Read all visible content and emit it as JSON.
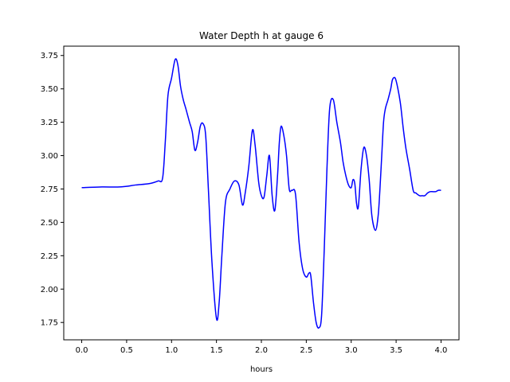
{
  "chart_data": {
    "type": "line",
    "title": "Water Depth h at gauge 6",
    "xlabel": "hours",
    "ylabel": "",
    "xlim": [
      -0.2,
      4.2
    ],
    "ylim": [
      1.62,
      3.82
    ],
    "xticks": [
      0.0,
      0.5,
      1.0,
      1.5,
      2.0,
      2.5,
      3.0,
      3.5,
      4.0
    ],
    "xtick_labels": [
      "0.0",
      "0.5",
      "1.0",
      "1.5",
      "2.0",
      "2.5",
      "3.0",
      "3.5",
      "4.0"
    ],
    "yticks": [
      1.75,
      2.0,
      2.25,
      2.5,
      2.75,
      3.0,
      3.25,
      3.5,
      3.75
    ],
    "ytick_labels": [
      "1.75",
      "2.00",
      "2.25",
      "2.50",
      "2.75",
      "3.00",
      "3.25",
      "3.50",
      "3.75"
    ],
    "grid": false,
    "legend": "none",
    "series": [
      {
        "color": "#0000ff",
        "x": [
          0.0,
          0.2,
          0.4,
          0.5,
          0.6,
          0.75,
          0.85,
          0.9,
          0.93,
          0.96,
          1.0,
          1.04,
          1.07,
          1.1,
          1.13,
          1.16,
          1.2,
          1.23,
          1.26,
          1.29,
          1.32,
          1.35,
          1.38,
          1.41,
          1.45,
          1.5,
          1.53,
          1.56,
          1.6,
          1.65,
          1.7,
          1.75,
          1.79,
          1.82,
          1.86,
          1.9,
          1.93,
          1.97,
          2.0,
          2.03,
          2.06,
          2.09,
          2.12,
          2.15,
          2.18,
          2.2,
          2.22,
          2.25,
          2.28,
          2.31,
          2.34,
          2.38,
          2.42,
          2.46,
          2.5,
          2.53,
          2.55,
          2.58,
          2.61,
          2.64,
          2.67,
          2.7,
          2.73,
          2.76,
          2.8,
          2.84,
          2.88,
          2.91,
          2.94,
          2.97,
          3.0,
          3.02,
          3.04,
          3.06,
          3.08,
          3.11,
          3.14,
          3.17,
          3.2,
          3.23,
          3.27,
          3.3,
          3.32,
          3.34,
          3.36,
          3.38,
          3.41,
          3.44,
          3.46,
          3.49,
          3.52,
          3.55,
          3.58,
          3.61,
          3.65,
          3.69,
          3.72,
          3.76,
          3.79,
          3.82,
          3.85,
          3.88,
          3.91,
          3.94,
          3.97,
          4.0
        ],
        "y": [
          2.76,
          2.765,
          2.765,
          2.77,
          2.78,
          2.79,
          2.81,
          2.83,
          3.1,
          3.45,
          3.58,
          3.72,
          3.68,
          3.52,
          3.42,
          3.35,
          3.25,
          3.18,
          3.04,
          3.1,
          3.22,
          3.24,
          3.15,
          2.75,
          2.2,
          1.78,
          1.9,
          2.25,
          2.65,
          2.75,
          2.81,
          2.78,
          2.63,
          2.72,
          2.92,
          3.19,
          3.08,
          2.8,
          2.7,
          2.69,
          2.85,
          3.0,
          2.7,
          2.59,
          2.85,
          3.1,
          3.22,
          3.15,
          3.0,
          2.75,
          2.74,
          2.71,
          2.35,
          2.15,
          2.09,
          2.12,
          2.1,
          1.9,
          1.75,
          1.71,
          1.8,
          2.3,
          2.9,
          3.35,
          3.42,
          3.25,
          3.1,
          2.95,
          2.85,
          2.78,
          2.76,
          2.82,
          2.79,
          2.64,
          2.62,
          2.9,
          3.06,
          3.0,
          2.82,
          2.55,
          2.44,
          2.55,
          2.75,
          3.0,
          3.25,
          3.35,
          3.42,
          3.5,
          3.57,
          3.58,
          3.5,
          3.38,
          3.2,
          3.05,
          2.9,
          2.74,
          2.72,
          2.7,
          2.7,
          2.7,
          2.72,
          2.73,
          2.73,
          2.73,
          2.74,
          2.74
        ]
      }
    ]
  }
}
